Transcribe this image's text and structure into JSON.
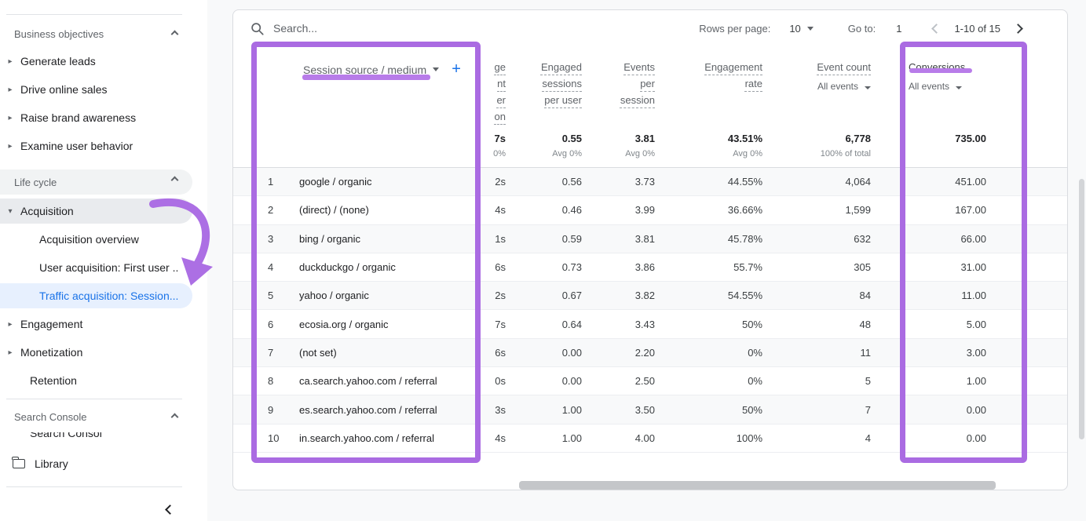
{
  "sidebar": {
    "business_section": {
      "label": "Business objectives",
      "items": [
        "Generate leads",
        "Drive online sales",
        "Raise brand awareness",
        "Examine user behavior"
      ]
    },
    "life_cycle_section": {
      "label": "Life cycle",
      "acquisition": {
        "label": "Acquisition",
        "children": [
          "Acquisition overview",
          "User acquisition: First user ..",
          "Traffic acquisition: Session..."
        ]
      },
      "engagement_label": "Engagement",
      "monetization_label": "Monetization",
      "retention_label": "Retention"
    },
    "search_console_section": {
      "label": "Search Console",
      "clipped_item": "Search Consol"
    },
    "library_label": "Library"
  },
  "toolbar": {
    "search_placeholder": "Search...",
    "rows_per_page_label": "Rows per page:",
    "rows_per_page_value": "10",
    "goto_label": "Go to:",
    "goto_value": "1",
    "pagination_range": "1-10 of 15"
  },
  "table": {
    "dimension_header": "Session source / medium",
    "clipped_column": {
      "header_lines": [
        "ge",
        "nt",
        "er",
        "on"
      ],
      "total": "7s",
      "total_sub": "0%"
    },
    "columns": [
      {
        "label": "Engaged sessions per user",
        "total": "0.55",
        "total_sub": "Avg 0%"
      },
      {
        "label": "Events per session",
        "total": "3.81",
        "total_sub": "Avg 0%"
      },
      {
        "label": "Engagement rate",
        "total": "43.51%",
        "total_sub": "Avg 0%"
      },
      {
        "label": "Event count",
        "selector": "All events",
        "total": "6,778",
        "total_sub": "100% of total"
      },
      {
        "label": "Conversions",
        "selector": "All events",
        "total": "735.00",
        "total_sub": ""
      }
    ],
    "rows": [
      {
        "n": "1",
        "source": "google / organic",
        "clip": "2s",
        "v1": "0.56",
        "v2": "3.73",
        "v3": "44.55%",
        "v4": "4,064",
        "v5": "451.00"
      },
      {
        "n": "2",
        "source": "(direct) / (none)",
        "clip": "4s",
        "v1": "0.46",
        "v2": "3.99",
        "v3": "36.66%",
        "v4": "1,599",
        "v5": "167.00"
      },
      {
        "n": "3",
        "source": "bing / organic",
        "clip": "1s",
        "v1": "0.59",
        "v2": "3.81",
        "v3": "45.78%",
        "v4": "632",
        "v5": "66.00"
      },
      {
        "n": "4",
        "source": "duckduckgo / organic",
        "clip": "6s",
        "v1": "0.73",
        "v2": "3.86",
        "v3": "55.7%",
        "v4": "305",
        "v5": "31.00"
      },
      {
        "n": "5",
        "source": "yahoo / organic",
        "clip": "2s",
        "v1": "0.67",
        "v2": "3.82",
        "v3": "54.55%",
        "v4": "84",
        "v5": "11.00"
      },
      {
        "n": "6",
        "source": "ecosia.org / organic",
        "clip": "7s",
        "v1": "0.64",
        "v2": "3.43",
        "v3": "50%",
        "v4": "48",
        "v5": "5.00"
      },
      {
        "n": "7",
        "source": "(not set)",
        "clip": "6s",
        "v1": "0.00",
        "v2": "2.20",
        "v3": "0%",
        "v4": "11",
        "v5": "3.00"
      },
      {
        "n": "8",
        "source": "ca.search.yahoo.com / referral",
        "clip": "0s",
        "v1": "0.00",
        "v2": "2.50",
        "v3": "0%",
        "v4": "5",
        "v5": "1.00"
      },
      {
        "n": "9",
        "source": "es.search.yahoo.com / referral",
        "clip": "3s",
        "v1": "1.00",
        "v2": "3.50",
        "v3": "50%",
        "v4": "7",
        "v5": "0.00"
      },
      {
        "n": "10",
        "source": "in.search.yahoo.com / referral",
        "clip": "4s",
        "v1": "1.00",
        "v2": "4.00",
        "v3": "100%",
        "v4": "4",
        "v5": "0.00"
      }
    ]
  },
  "annotation_colors": {
    "box": "#aa6be2",
    "underline": "#b87ce9"
  }
}
